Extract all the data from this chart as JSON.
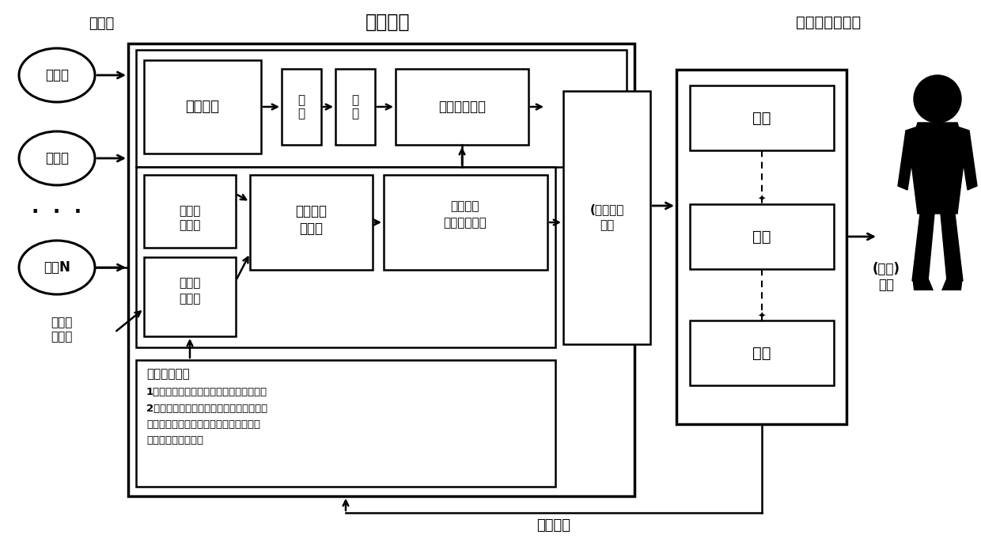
{
  "title_middle": "中间节点",
  "title_right": "用户终端处理器",
  "label_video_stream": "视频流",
  "label_feedback": "反馈信令",
  "label_sphere_video": "(球面)\n视频",
  "label_assist_outside1": "协助拼",
  "label_assist_outside2": "接信令",
  "cameras": [
    "相机一",
    "相机二",
    "相机N"
  ],
  "box_complete_stitch": "完整拼接",
  "box_mapping1": "映\n射",
  "box_render1": "渲\n染",
  "box_extract1": "传输区域提取",
  "box_assist_cmd1": "协助拼",
  "box_assist_cmd2": "接信令",
  "box_transport_param1": "传输区",
  "box_transport_param2": "域参数",
  "box_related_video1": "相关视频",
  "box_related_video2": "流选择",
  "box_stitch_render1": "拼接渲染",
  "box_stitch_render2": "传输区域提取",
  "box_diff_encode1": "(差异化）",
  "box_diff_encode2": "编码",
  "box_decode": "解码",
  "box_mapping2": "映射",
  "box_render2": "渲染",
  "box_decision_l0": "传输区域决策",
  "box_decision_l1": "1、根据用户视野信息计算用户视野区域；",
  "box_decision_l2": "2、根据用户网络状况信息选择传输方案；",
  "box_decision_l3": "根据用户终端处理能力信息和用户网络状",
  "box_decision_l4": "况信息计算冗余区域",
  "bg_color": "#ffffff"
}
